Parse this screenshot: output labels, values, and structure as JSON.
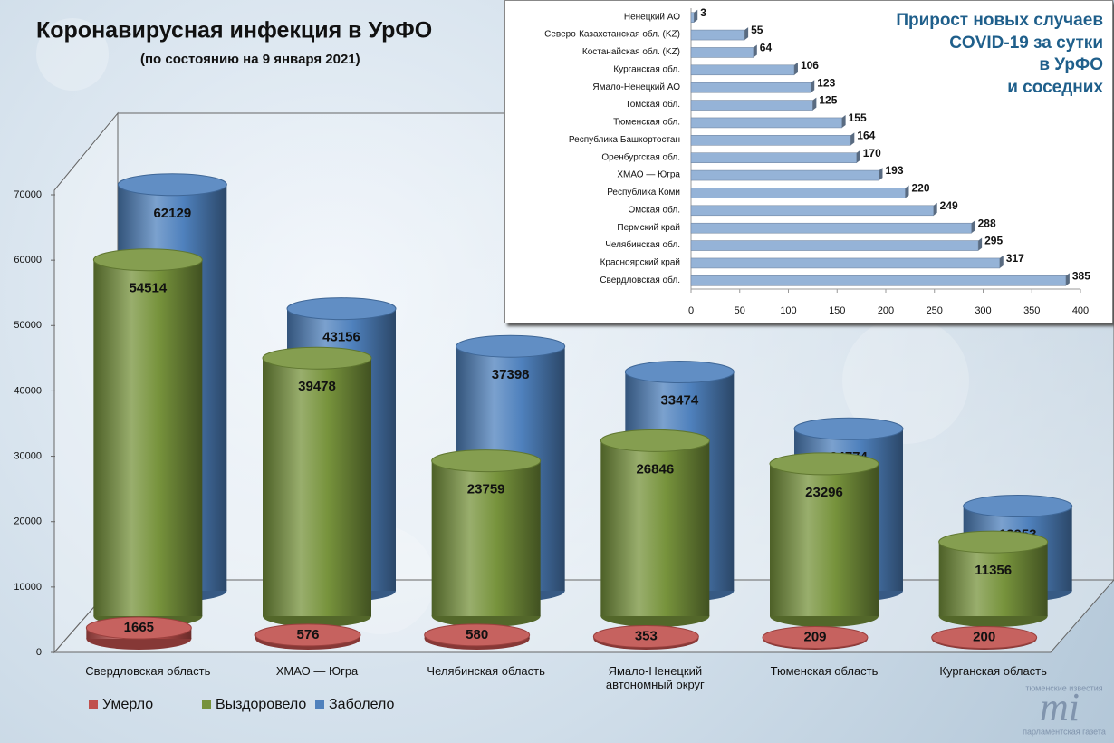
{
  "chart_data": [
    {
      "type": "cylinder",
      "title": "Коронавирусная инфекция в УрФО",
      "subtitle": "(по состоянию на 9 января 2021)",
      "categories": [
        "Свердловская область",
        "ХМАО — Югра",
        "Челябинская область",
        "Ямало-Ненецкий\nавтономный округ",
        "Тюменская область",
        "Курганская область"
      ],
      "series": [
        {
          "name": "Умерло",
          "color": "#c0504d",
          "values": [
            1665,
            576,
            580,
            353,
            209,
            200
          ]
        },
        {
          "name": "Выздоровело",
          "color": "#77933c",
          "values": [
            54514,
            39478,
            23759,
            26846,
            23296,
            11356
          ]
        },
        {
          "name": "Заболело",
          "color": "#4f81bd",
          "values": [
            62129,
            43156,
            37398,
            33474,
            24774,
            12953
          ]
        }
      ],
      "ylim": [
        0,
        70000
      ],
      "yticks": [
        0,
        10000,
        20000,
        30000,
        40000,
        50000,
        60000,
        70000
      ],
      "grid": false,
      "legend": "bottom"
    },
    {
      "type": "barh",
      "title": "Прирост новых случаев\nCOVID-19 за сутки\nв УрФО\nи соседних",
      "categories": [
        "Ненецкий АО",
        "Северо-Казахстанская обл. (KZ)",
        "Костанайская обл. (KZ)",
        "Курганская обл.",
        "Ямало-Ненецкий АО",
        "Томская обл.",
        "Тюменская обл.",
        "Республика Башкортостан",
        "Оренбургская обл.",
        "ХМАО — Югра",
        "Республика Коми",
        "Омская обл.",
        "Пермский край",
        "Челябинская обл.",
        "Красноярский край",
        "Свердловская обл."
      ],
      "values": [
        3,
        55,
        64,
        106,
        123,
        125,
        155,
        164,
        170,
        193,
        220,
        249,
        288,
        295,
        317,
        385
      ],
      "color": "#95b3d7",
      "xlim": [
        0,
        400
      ],
      "xticks": [
        0,
        50,
        100,
        150,
        200,
        250,
        300,
        350,
        400
      ]
    }
  ],
  "watermark": {
    "logo": "mi",
    "top": "тюменские известия",
    "bottom": "парламентская газета"
  }
}
